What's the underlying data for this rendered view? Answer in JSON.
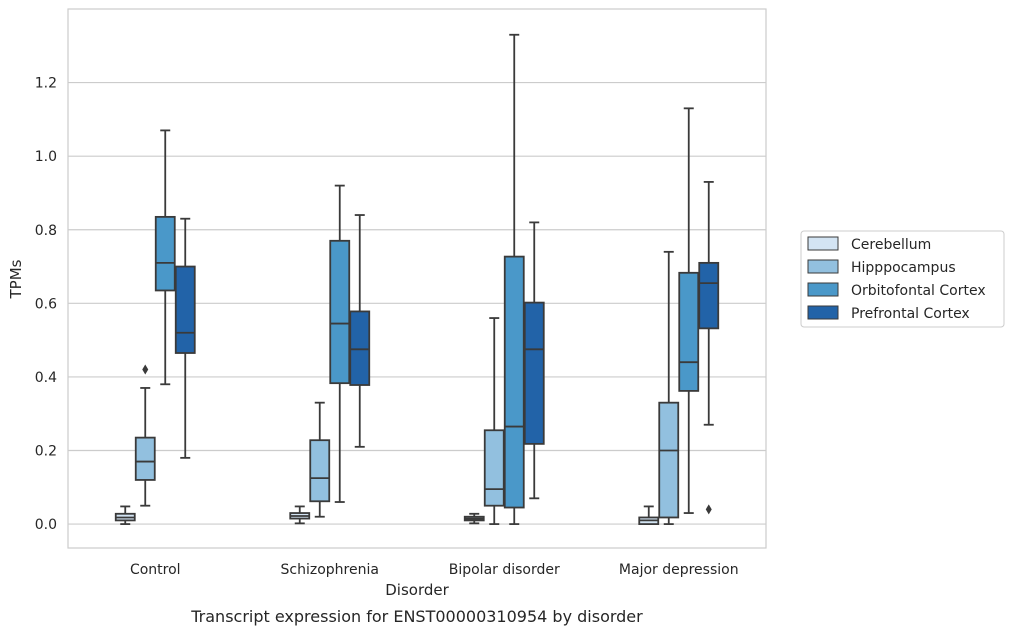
{
  "chart_data": {
    "type": "box",
    "caption": "Transcript expression for ENST00000310954 by disorder",
    "xlabel": "Disorder",
    "ylabel": "TPMs",
    "ylim": [
      -0.065,
      1.4
    ],
    "yticks": [
      0.0,
      0.2,
      0.4,
      0.6,
      0.8,
      1.0,
      1.2
    ],
    "ytick_labels": [
      "0.0",
      "0.2",
      "0.4",
      "0.6",
      "0.8",
      "1.0",
      "1.2"
    ],
    "grid": "horizontal",
    "legend_position": "right",
    "categories": [
      "Control",
      "Schizophrenia",
      "Bipolar disorder",
      "Major depression"
    ],
    "series": [
      {
        "name": "Cerebellum",
        "color": "#d3e4f3",
        "boxes": [
          {
            "whislo": 0.0,
            "q1": 0.01,
            "med": 0.018,
            "q3": 0.028,
            "whishi": 0.048,
            "fliers": []
          },
          {
            "whislo": 0.002,
            "q1": 0.015,
            "med": 0.022,
            "q3": 0.03,
            "whishi": 0.048,
            "fliers": []
          },
          {
            "whislo": 0.002,
            "q1": 0.01,
            "med": 0.015,
            "q3": 0.02,
            "whishi": 0.028,
            "fliers": []
          },
          {
            "whislo": 0.0,
            "q1": 0.0,
            "med": 0.01,
            "q3": 0.018,
            "whishi": 0.048,
            "fliers": []
          }
        ]
      },
      {
        "name": "Hipppocampus",
        "color": "#92c0df",
        "boxes": [
          {
            "whislo": 0.05,
            "q1": 0.12,
            "med": 0.17,
            "q3": 0.235,
            "whishi": 0.37,
            "fliers": [
              0.42
            ]
          },
          {
            "whislo": 0.02,
            "q1": 0.062,
            "med": 0.125,
            "q3": 0.228,
            "whishi": 0.33,
            "fliers": []
          },
          {
            "whislo": 0.0,
            "q1": 0.05,
            "med": 0.095,
            "q3": 0.255,
            "whishi": 0.56,
            "fliers": []
          },
          {
            "whislo": 0.0,
            "q1": 0.018,
            "med": 0.2,
            "q3": 0.33,
            "whishi": 0.74,
            "fliers": []
          }
        ]
      },
      {
        "name": "Orbitofontal Cortex",
        "color": "#4a98c9",
        "boxes": [
          {
            "whislo": 0.38,
            "q1": 0.635,
            "med": 0.71,
            "q3": 0.835,
            "whishi": 1.07,
            "fliers": []
          },
          {
            "whislo": 0.06,
            "q1": 0.383,
            "med": 0.545,
            "q3": 0.77,
            "whishi": 0.92,
            "fliers": []
          },
          {
            "whislo": 0.0,
            "q1": 0.045,
            "med": 0.265,
            "q3": 0.727,
            "whishi": 1.33,
            "fliers": []
          },
          {
            "whislo": 0.03,
            "q1": 0.362,
            "med": 0.44,
            "q3": 0.683,
            "whishi": 1.13,
            "fliers": []
          }
        ]
      },
      {
        "name": "Prefrontal Cortex",
        "color": "#2263a8",
        "boxes": [
          {
            "whislo": 0.18,
            "q1": 0.465,
            "med": 0.52,
            "q3": 0.7,
            "whishi": 0.83,
            "fliers": []
          },
          {
            "whislo": 0.21,
            "q1": 0.378,
            "med": 0.475,
            "q3": 0.578,
            "whishi": 0.84,
            "fliers": []
          },
          {
            "whislo": 0.07,
            "q1": 0.218,
            "med": 0.475,
            "q3": 0.602,
            "whishi": 0.82,
            "fliers": []
          },
          {
            "whislo": 0.27,
            "q1": 0.532,
            "med": 0.655,
            "q3": 0.71,
            "whishi": 0.93,
            "fliers": [
              0.04
            ]
          }
        ]
      }
    ],
    "line_color": "#3a3a3a"
  }
}
